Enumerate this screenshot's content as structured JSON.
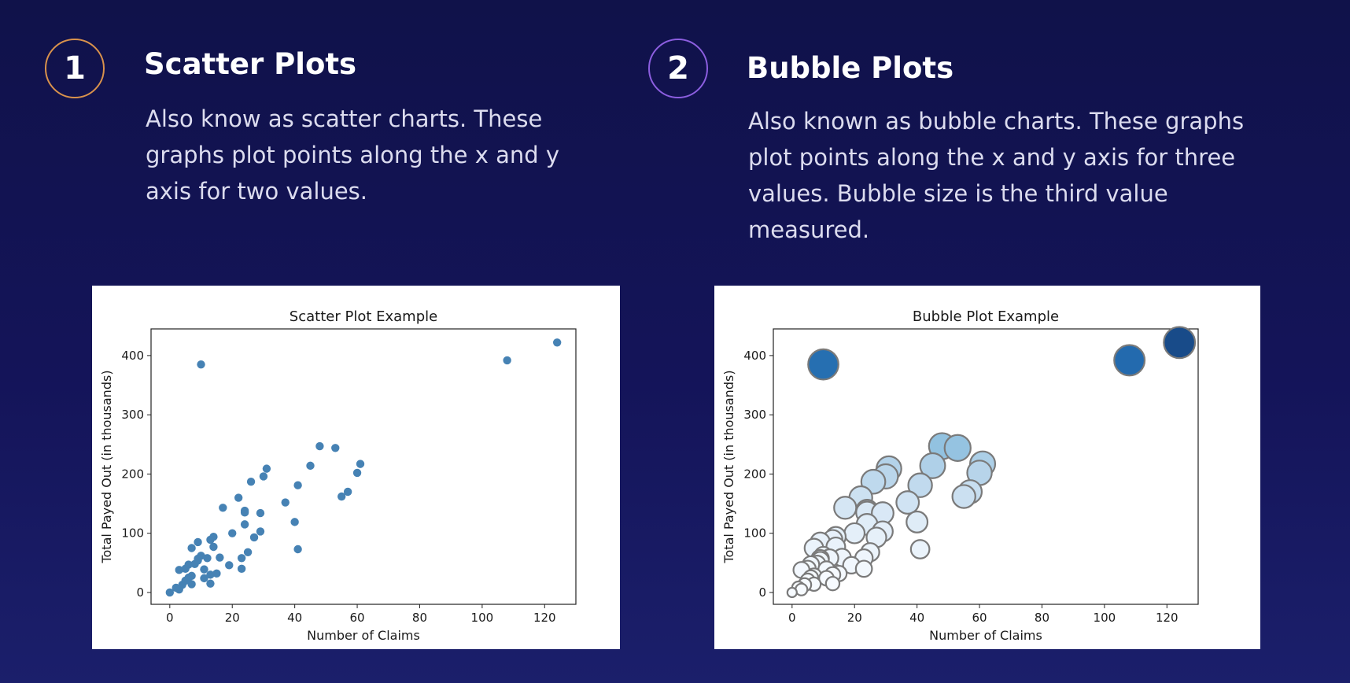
{
  "sections": [
    {
      "number": "1",
      "title": "Scatter Plots",
      "description": "Also know as scatter charts. These graphs plot points along the x and y axis for two values."
    },
    {
      "number": "2",
      "title": "Bubble Plots",
      "description": "Also known as bubble charts. These graphs plot points along the x and y axis for three values. Bubble size is the third value measured."
    }
  ],
  "chart_data": [
    {
      "type": "scatter",
      "title": "Scatter Plot Example",
      "xlabel": "Number of Claims",
      "ylabel": "Total Payed Out (in thousands)",
      "xlim": [
        -6,
        130
      ],
      "ylim": [
        -20,
        445
      ],
      "xticks": [
        0,
        20,
        40,
        60,
        80,
        100,
        120
      ],
      "yticks": [
        0,
        100,
        200,
        300,
        400
      ],
      "grid": false,
      "marker_color": "#4682b4",
      "points": [
        [
          0,
          0
        ],
        [
          2,
          8
        ],
        [
          3,
          5
        ],
        [
          3,
          38
        ],
        [
          4,
          13
        ],
        [
          5,
          40
        ],
        [
          5,
          20
        ],
        [
          6,
          25
        ],
        [
          6,
          47
        ],
        [
          7,
          14
        ],
        [
          7,
          28
        ],
        [
          7,
          75
        ],
        [
          8,
          48
        ],
        [
          9,
          54
        ],
        [
          9,
          57
        ],
        [
          9,
          85
        ],
        [
          10,
          385
        ],
        [
          10,
          62
        ],
        [
          11,
          24
        ],
        [
          11,
          39
        ],
        [
          12,
          58
        ],
        [
          13,
          15
        ],
        [
          13,
          89
        ],
        [
          13,
          30
        ],
        [
          14,
          94
        ],
        [
          14,
          77
        ],
        [
          15,
          32
        ],
        [
          16,
          59
        ],
        [
          17,
          143
        ],
        [
          19,
          46
        ],
        [
          20,
          100
        ],
        [
          22,
          160
        ],
        [
          23,
          40
        ],
        [
          23,
          58
        ],
        [
          24,
          115
        ],
        [
          24,
          135
        ],
        [
          24,
          138
        ],
        [
          25,
          68
        ],
        [
          26,
          187
        ],
        [
          27,
          93
        ],
        [
          29,
          134
        ],
        [
          29,
          103
        ],
        [
          30,
          196
        ],
        [
          31,
          209
        ],
        [
          37,
          152
        ],
        [
          40,
          119
        ],
        [
          41,
          181
        ],
        [
          41,
          73
        ],
        [
          45,
          214
        ],
        [
          48,
          247
        ],
        [
          53,
          244
        ],
        [
          55,
          162
        ],
        [
          57,
          170
        ],
        [
          60,
          202
        ],
        [
          61,
          217
        ],
        [
          108,
          392
        ],
        [
          124,
          422
        ]
      ],
      "style": "uniform"
    },
    {
      "type": "scatter",
      "title": "Bubble Plot Example",
      "xlabel": "Number of Claims",
      "ylabel": "Total Payed Out (in thousands)",
      "xlim": [
        -6,
        130
      ],
      "ylim": [
        -20,
        445
      ],
      "xticks": [
        0,
        20,
        40,
        60,
        80,
        100,
        120
      ],
      "yticks": [
        0,
        100,
        200,
        300,
        400
      ],
      "grid": false,
      "colormap": "Blues",
      "size_and_color_encode": "y value",
      "points": [
        [
          0,
          0
        ],
        [
          2,
          8
        ],
        [
          3,
          5
        ],
        [
          3,
          38
        ],
        [
          4,
          13
        ],
        [
          5,
          40
        ],
        [
          5,
          20
        ],
        [
          6,
          25
        ],
        [
          6,
          47
        ],
        [
          7,
          14
        ],
        [
          7,
          28
        ],
        [
          7,
          75
        ],
        [
          8,
          48
        ],
        [
          9,
          54
        ],
        [
          9,
          57
        ],
        [
          9,
          85
        ],
        [
          10,
          385
        ],
        [
          10,
          62
        ],
        [
          11,
          24
        ],
        [
          11,
          39
        ],
        [
          12,
          58
        ],
        [
          13,
          15
        ],
        [
          13,
          89
        ],
        [
          13,
          30
        ],
        [
          14,
          94
        ],
        [
          14,
          77
        ],
        [
          15,
          32
        ],
        [
          16,
          59
        ],
        [
          17,
          143
        ],
        [
          19,
          46
        ],
        [
          20,
          100
        ],
        [
          22,
          160
        ],
        [
          23,
          40
        ],
        [
          23,
          58
        ],
        [
          24,
          115
        ],
        [
          24,
          135
        ],
        [
          24,
          138
        ],
        [
          25,
          68
        ],
        [
          26,
          187
        ],
        [
          27,
          93
        ],
        [
          29,
          134
        ],
        [
          29,
          103
        ],
        [
          30,
          196
        ],
        [
          31,
          209
        ],
        [
          37,
          152
        ],
        [
          40,
          119
        ],
        [
          41,
          181
        ],
        [
          41,
          73
        ],
        [
          45,
          214
        ],
        [
          48,
          247
        ],
        [
          53,
          244
        ],
        [
          55,
          162
        ],
        [
          57,
          170
        ],
        [
          60,
          202
        ],
        [
          61,
          217
        ],
        [
          108,
          392
        ],
        [
          124,
          422
        ]
      ],
      "style": "bubble"
    }
  ]
}
